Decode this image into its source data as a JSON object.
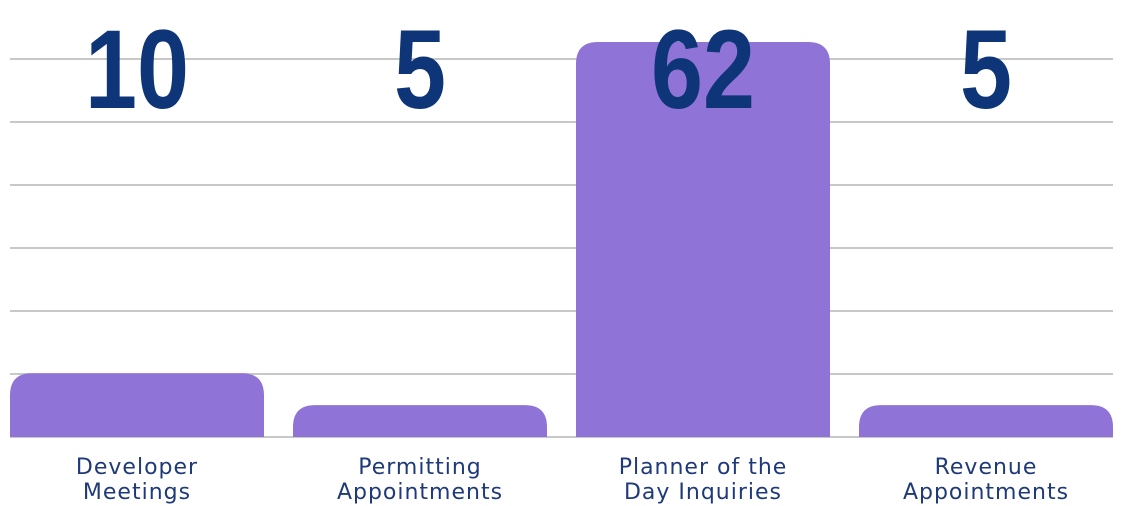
{
  "chart_data": {
    "type": "bar",
    "categories": [
      [
        "Developer",
        "Meetings"
      ],
      [
        "Permitting",
        "Appointments"
      ],
      [
        "Planner of the",
        "Day Inquiries"
      ],
      [
        "Revenue",
        "Appointments"
      ]
    ],
    "values": [
      10,
      5,
      62,
      5
    ],
    "data_labels": [
      "10",
      "5",
      "62",
      "5"
    ],
    "ylim": [
      0,
      65
    ],
    "grid": true,
    "colors": {
      "bar": "#8f73d6",
      "grid": "#c8c8c8",
      "value_label": "#0d3578",
      "category_label": "#1f3a7a"
    }
  }
}
